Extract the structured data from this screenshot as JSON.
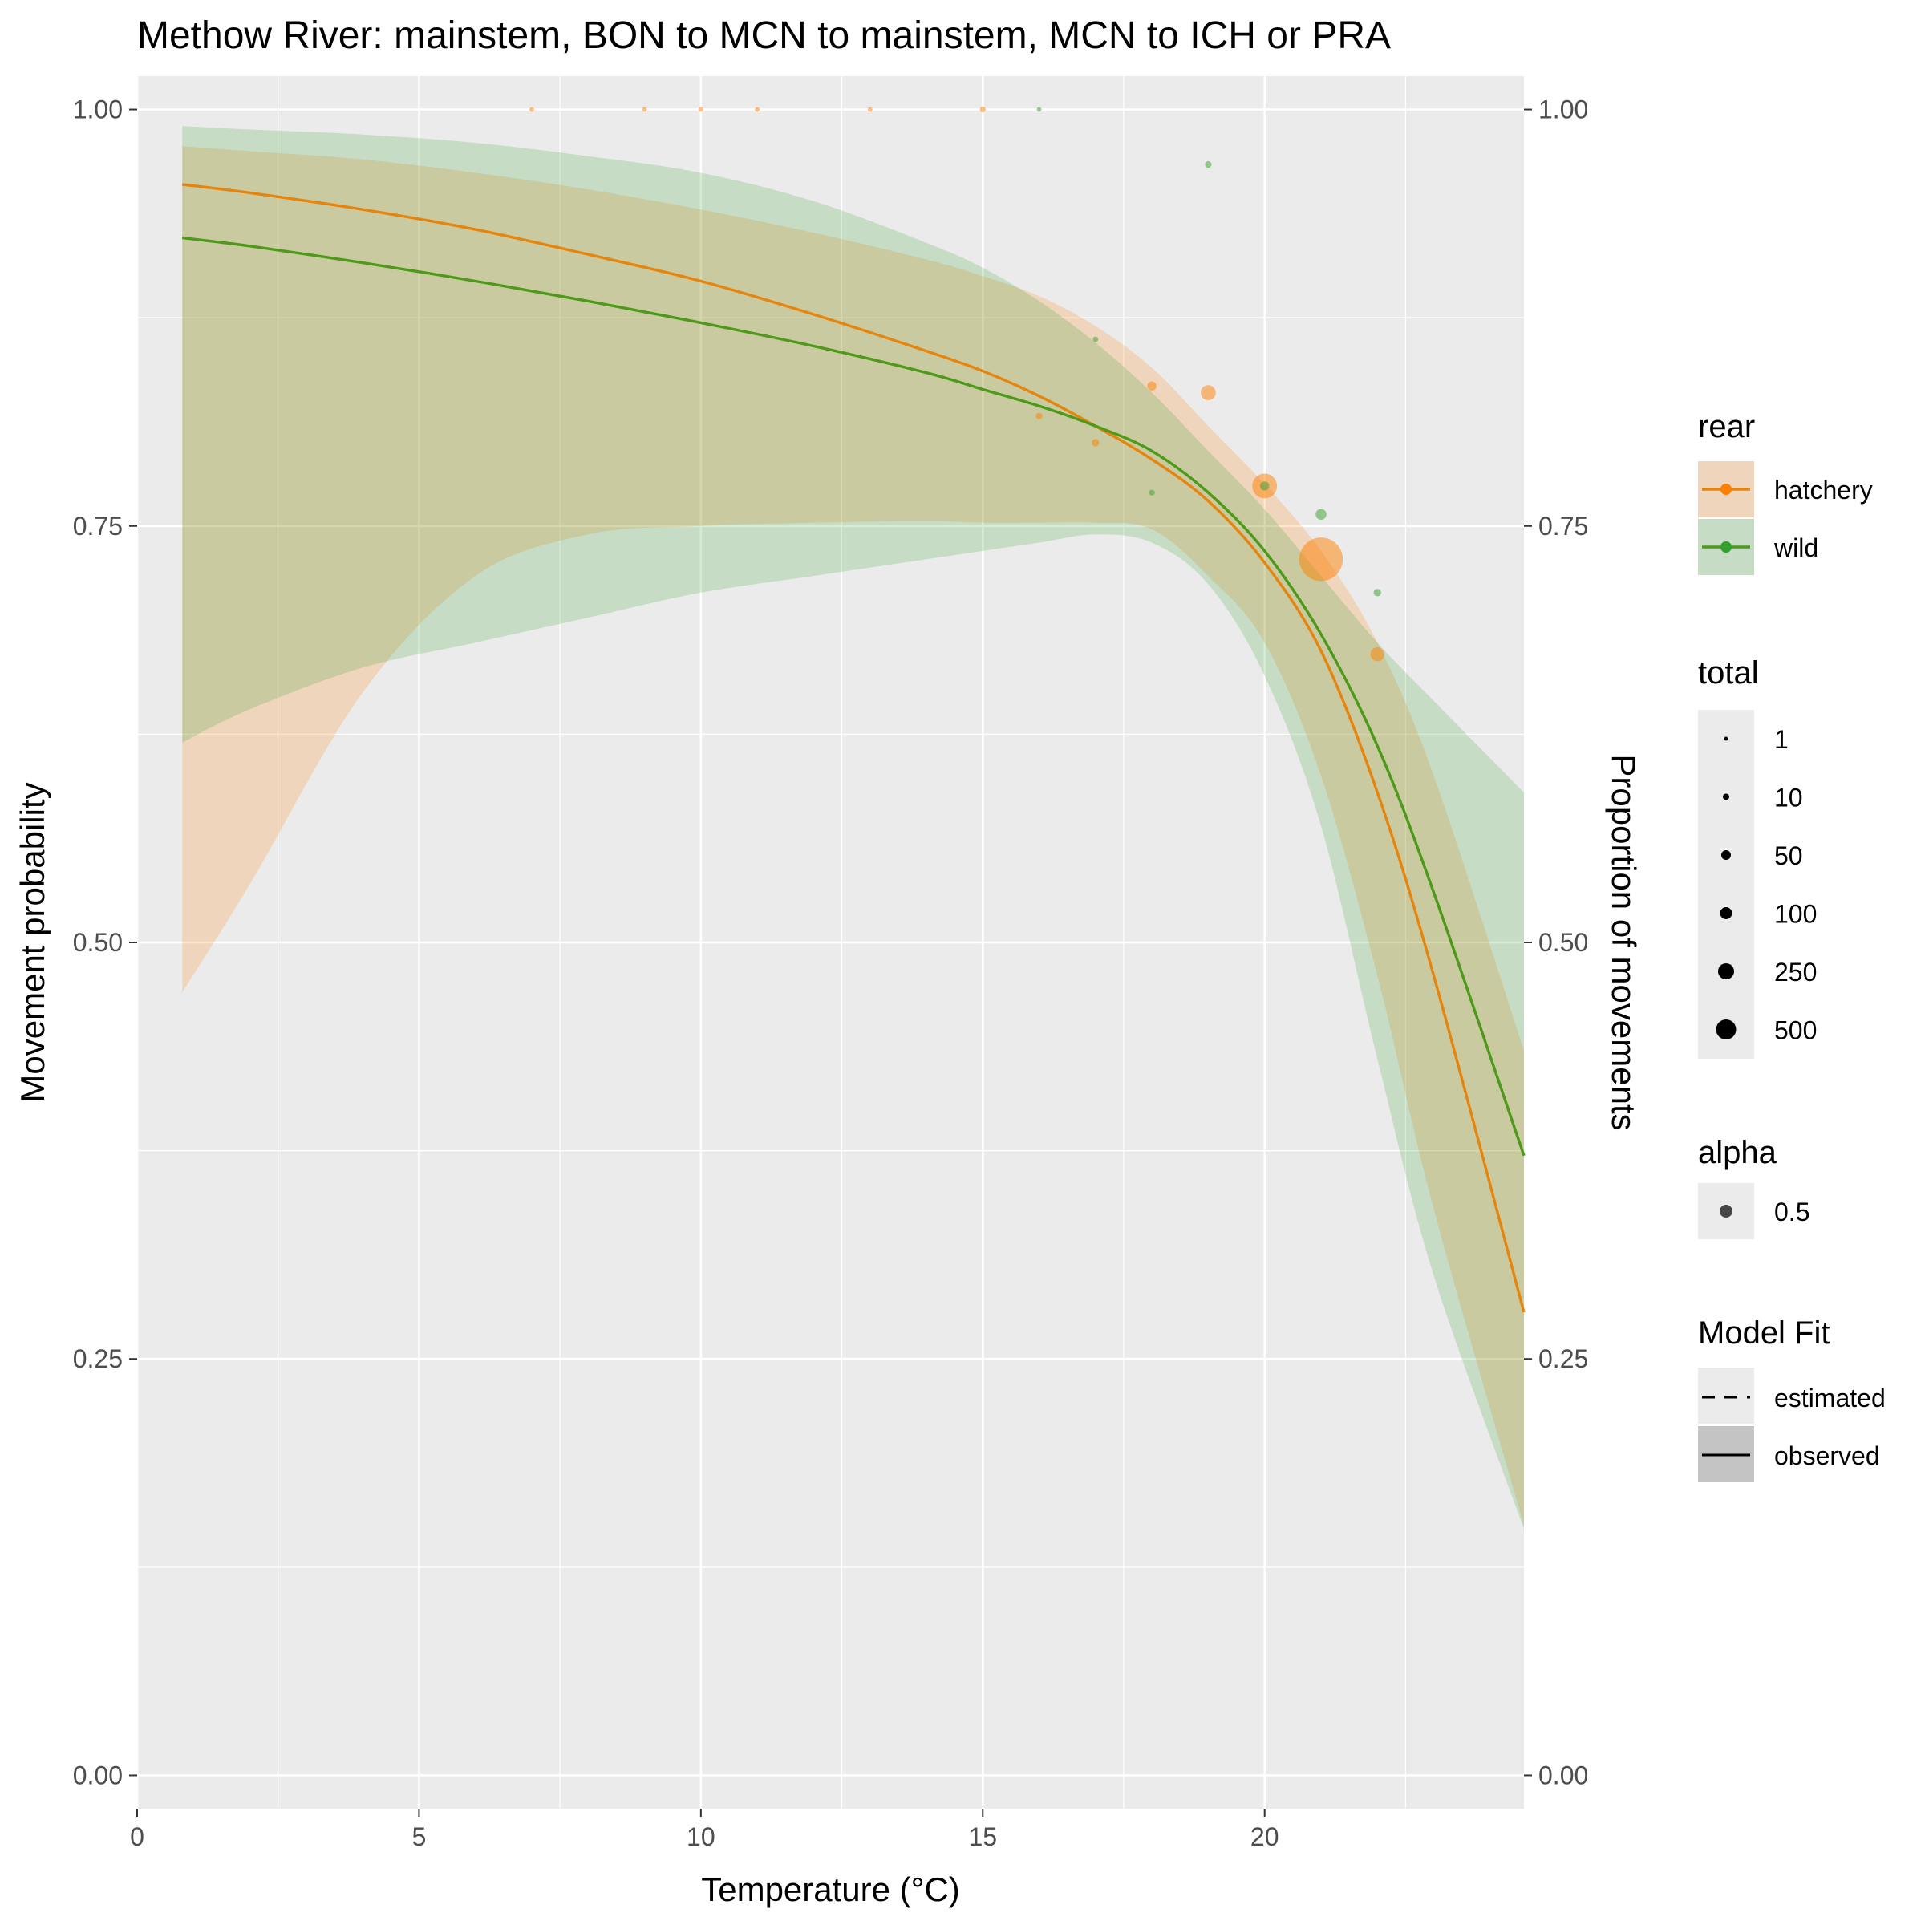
{
  "chart_data": {
    "type": "line",
    "title": "Methow River: mainstem, BON to MCN to mainstem, MCN to ICH or PRA",
    "xlabel": "Temperature (°C)",
    "ylabel": "Movement probability",
    "ylabel_right": "Proportion of movements",
    "xlim": [
      0,
      24.6
    ],
    "ylim": [
      0,
      1
    ],
    "x_ticks": [
      "0",
      "5",
      "10",
      "15",
      "20"
    ],
    "x_tick_values": [
      0,
      5,
      10,
      15,
      20
    ],
    "y_ticks": [
      "0.00",
      "0.25",
      "0.50",
      "0.75",
      "1.00"
    ],
    "y_tick_values": [
      0,
      0.25,
      0.5,
      0.75,
      1.0
    ],
    "grid": true,
    "colors": {
      "hatchery": "#ff7f00",
      "hatchery_line": "#e6850e",
      "wild": "#33a02c",
      "wild_line": "#4d9a1a",
      "panel_bg": "#ebebeb",
      "grid": "#ffffff"
    },
    "series": [
      {
        "name": "hatchery",
        "x": [
          0.8,
          2,
          4,
          6,
          8,
          10,
          12,
          14,
          15,
          16,
          17,
          18,
          19,
          20,
          21,
          22,
          23,
          24.6
        ],
        "mean": [
          0.955,
          0.95,
          0.94,
          0.928,
          0.913,
          0.897,
          0.877,
          0.855,
          0.843,
          0.828,
          0.81,
          0.79,
          0.765,
          0.728,
          0.675,
          0.59,
          0.48,
          0.278
        ],
        "lower": [
          0.47,
          0.535,
          0.65,
          0.72,
          0.745,
          0.75,
          0.752,
          0.753,
          0.752,
          0.752,
          0.752,
          0.748,
          0.72,
          0.68,
          0.6,
          0.48,
          0.34,
          0.15
        ],
        "upper": [
          0.978,
          0.975,
          0.97,
          0.962,
          0.952,
          0.94,
          0.926,
          0.91,
          0.9,
          0.888,
          0.87,
          0.845,
          0.81,
          0.775,
          0.735,
          0.68,
          0.6,
          0.435
        ]
      },
      {
        "name": "wild",
        "x": [
          0.8,
          2,
          4,
          6,
          8,
          10,
          12,
          14,
          15,
          16,
          17,
          18,
          19,
          20,
          21,
          22,
          23,
          24.6
        ],
        "mean": [
          0.923,
          0.918,
          0.908,
          0.897,
          0.885,
          0.872,
          0.858,
          0.842,
          0.832,
          0.822,
          0.81,
          0.795,
          0.77,
          0.735,
          0.685,
          0.618,
          0.53,
          0.372
        ],
        "lower": [
          0.62,
          0.64,
          0.665,
          0.68,
          0.695,
          0.71,
          0.72,
          0.73,
          0.735,
          0.74,
          0.745,
          0.74,
          0.715,
          0.66,
          0.57,
          0.43,
          0.3,
          0.148
        ],
        "upper": [
          0.99,
          0.988,
          0.985,
          0.98,
          0.972,
          0.962,
          0.945,
          0.92,
          0.905,
          0.885,
          0.86,
          0.83,
          0.795,
          0.76,
          0.72,
          0.68,
          0.645,
          0.59
        ]
      }
    ],
    "observed_points": [
      {
        "rear": "hatchery",
        "x": 7,
        "y": 1.0,
        "total": 1
      },
      {
        "rear": "hatchery",
        "x": 9,
        "y": 1.0,
        "total": 1
      },
      {
        "rear": "hatchery",
        "x": 10,
        "y": 1.0,
        "total": 1
      },
      {
        "rear": "hatchery",
        "x": 11,
        "y": 1.0,
        "total": 1
      },
      {
        "rear": "hatchery",
        "x": 13,
        "y": 1.0,
        "total": 1
      },
      {
        "rear": "hatchery",
        "x": 15,
        "y": 1.0,
        "total": 3
      },
      {
        "rear": "hatchery",
        "x": 16,
        "y": 0.816,
        "total": 5
      },
      {
        "rear": "hatchery",
        "x": 17,
        "y": 0.8,
        "total": 8
      },
      {
        "rear": "hatchery",
        "x": 18,
        "y": 0.834,
        "total": 15
      },
      {
        "rear": "hatchery",
        "x": 19,
        "y": 0.83,
        "total": 60
      },
      {
        "rear": "hatchery",
        "x": 20,
        "y": 0.774,
        "total": 200
      },
      {
        "rear": "hatchery",
        "x": 21,
        "y": 0.73,
        "total": 700
      },
      {
        "rear": "hatchery",
        "x": 22,
        "y": 0.673,
        "total": 50
      },
      {
        "rear": "wild",
        "x": 16,
        "y": 1.0,
        "total": 1
      },
      {
        "rear": "wild",
        "x": 17,
        "y": 0.862,
        "total": 2
      },
      {
        "rear": "wild",
        "x": 18,
        "y": 0.77,
        "total": 3
      },
      {
        "rear": "wild",
        "x": 19,
        "y": 0.967,
        "total": 5
      },
      {
        "rear": "wild",
        "x": 20,
        "y": 0.774,
        "total": 15
      },
      {
        "rear": "wild",
        "x": 21,
        "y": 0.757,
        "total": 25
      },
      {
        "rear": "wild",
        "x": 22,
        "y": 0.71,
        "total": 8
      }
    ],
    "legend": {
      "placement": "right",
      "rear": {
        "title": "rear",
        "items": [
          "hatchery",
          "wild"
        ]
      },
      "total": {
        "title": "total",
        "items": [
          "1",
          "10",
          "50",
          "100",
          "250",
          "500"
        ],
        "values": [
          1,
          10,
          50,
          100,
          250,
          500
        ]
      },
      "alpha": {
        "title": "alpha",
        "items": [
          "0.5"
        ]
      },
      "model_fit": {
        "title": "Model Fit",
        "items": [
          "estimated",
          "observed"
        ]
      }
    }
  }
}
